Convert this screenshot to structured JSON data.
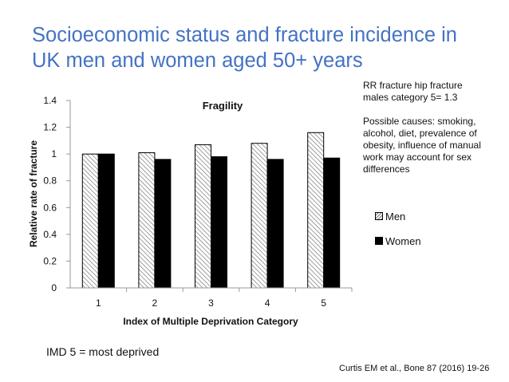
{
  "slide": {
    "title_lines": [
      "Socioeconomic status and fracture incidence in",
      "UK men and women aged 50+ years"
    ],
    "note_lines": [
      "RR fracture hip fracture",
      "males category 5= 1.3"
    ],
    "causes_lines": [
      "Possible causes: smoking,",
      "alcohol, diet, prevalence of",
      "obesity, influence of manual",
      "work may account for sex",
      "differences"
    ],
    "imd_note": "IMD 5 = most deprived",
    "citation": "Curtis EM et al., Bone  87 (2016)  19-26"
  },
  "chart_data": {
    "type": "bar",
    "title": "Fragility",
    "xlabel": "Index of Multiple Deprivation Category",
    "ylabel": "Relative rate of fracture",
    "categories": [
      "1",
      "2",
      "3",
      "4",
      "5"
    ],
    "series": [
      {
        "name": "Men",
        "values": [
          1.0,
          1.01,
          1.07,
          1.08,
          1.16
        ],
        "fill": "hatched"
      },
      {
        "name": "Women",
        "values": [
          1.0,
          0.96,
          0.98,
          0.96,
          0.97
        ],
        "fill": "#000000"
      }
    ],
    "ylim": [
      0,
      1.4
    ],
    "yticks": [
      "0",
      "0.2",
      "0.4",
      "0.6",
      "0.8",
      "1",
      "1.2",
      "1.4"
    ],
    "grid": false,
    "legend_position": "right"
  }
}
